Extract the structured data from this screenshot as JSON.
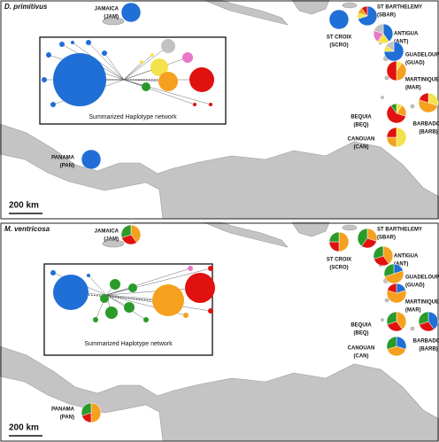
{
  "colors": [
    "#1f6fd6",
    "#f4e24c",
    "#f5a11f",
    "#e0110f",
    "#2a9a2a",
    "#e778c8",
    "#c2c2c2"
  ],
  "panels": [
    {
      "species": "D. primitivus",
      "network_caption": "Summarized Haplotype network",
      "scale": "200 km",
      "sites": [
        {
          "name": "JAMAICA",
          "code": "(JAM)",
          "values": [
            100,
            0,
            0,
            0,
            0,
            0,
            0
          ]
        },
        {
          "name": "PANAMA",
          "code": "(PAN)",
          "values": [
            100,
            0,
            0,
            0,
            0,
            0,
            0
          ]
        },
        {
          "name": "ST CROIX",
          "code": "(SCRO)",
          "values": [
            100,
            0,
            0,
            0,
            0,
            0,
            0
          ]
        },
        {
          "name": "ST BARTHELEMY",
          "code": "(SBAR)",
          "values": [
            70,
            10,
            10,
            10,
            0,
            0,
            0
          ]
        },
        {
          "name": "ANTIGUA",
          "code": "(ANT)",
          "values": [
            40,
            20,
            0,
            0,
            0,
            20,
            20
          ]
        },
        {
          "name": "GUADELOUPE",
          "code": "(GUAD)",
          "values": [
            75,
            10,
            0,
            0,
            0,
            0,
            15
          ]
        },
        {
          "name": "MARTINIQUE",
          "code": "(MAR)",
          "values": [
            0,
            10,
            40,
            50,
            0,
            0,
            0
          ]
        },
        {
          "name": "BEQUIA",
          "code": "(BEQ)",
          "values": [
            0,
            10,
            20,
            60,
            10,
            0,
            0
          ]
        },
        {
          "name": "CANOUAN",
          "code": "(CAN)",
          "values": [
            0,
            50,
            25,
            25,
            0,
            0,
            0
          ]
        },
        {
          "name": "BARBADOS",
          "code": "(BARB)",
          "values": [
            0,
            30,
            50,
            20,
            0,
            0,
            0
          ]
        }
      ]
    },
    {
      "species": "M. ventricosa",
      "network_caption": "Summarized Haplotype network",
      "scale": "200 km",
      "sites": [
        {
          "name": "JAMAICA",
          "code": "(JAM)",
          "values": [
            0,
            0,
            40,
            30,
            30,
            0,
            0
          ]
        },
        {
          "name": "PANAMA",
          "code": "(PAN)",
          "values": [
            0,
            0,
            50,
            20,
            30,
            0,
            0
          ]
        },
        {
          "name": "ST CROIX",
          "code": "(SCRO)",
          "values": [
            0,
            0,
            50,
            25,
            25,
            0,
            0
          ]
        },
        {
          "name": "ST BARTHELEMY",
          "code": "(SBAR)",
          "values": [
            0,
            0,
            30,
            30,
            40,
            0,
            0
          ]
        },
        {
          "name": "ANTIGUA",
          "code": "(ANT)",
          "values": [
            0,
            0,
            40,
            30,
            30,
            0,
            0
          ]
        },
        {
          "name": "GUADELOUPE",
          "code": "(GUAD)",
          "values": [
            20,
            0,
            50,
            0,
            30,
            0,
            0
          ]
        },
        {
          "name": "MARTINIQUE",
          "code": "(MAR)",
          "values": [
            20,
            0,
            60,
            20,
            0,
            0,
            0
          ]
        },
        {
          "name": "BEQUIA",
          "code": "(BEQ)",
          "values": [
            0,
            0,
            40,
            30,
            30,
            0,
            0
          ]
        },
        {
          "name": "CANOUAN",
          "code": "(CAN)",
          "values": [
            30,
            0,
            40,
            0,
            30,
            0,
            0
          ]
        },
        {
          "name": "BARBADOS",
          "code": "(BARB)",
          "values": [
            40,
            0,
            0,
            30,
            30,
            0,
            0
          ]
        }
      ]
    }
  ]
}
